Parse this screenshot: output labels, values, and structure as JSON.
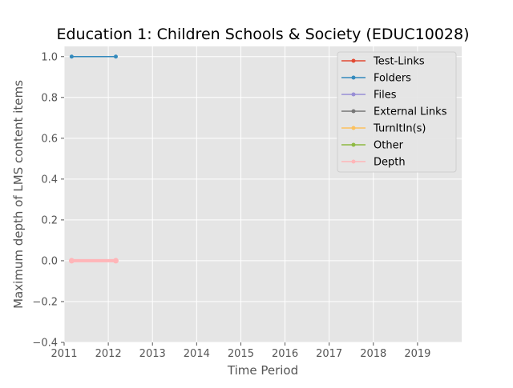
{
  "chart_data": {
    "type": "line",
    "title": "Education 1: Children Schools & Society (EDUC10028)",
    "xlabel": "Time Period",
    "ylabel": "Maximum depth of LMS content items",
    "xlim": [
      2011,
      2020
    ],
    "ylim": [
      -0.4,
      1.05
    ],
    "xticks": [
      "2011",
      "2012",
      "2013",
      "2014",
      "2015",
      "2016",
      "2017",
      "2018",
      "2019"
    ],
    "yticks": [
      "−0.4",
      "−0.2",
      "0.0",
      "0.2",
      "0.4",
      "0.6",
      "0.8",
      "1.0"
    ],
    "grid": true,
    "legend_position": "top-right",
    "x": [
      2011.17,
      2012.17
    ],
    "series": [
      {
        "name": "Test-Links",
        "color": "#E24A33",
        "values": [
          0,
          0
        ]
      },
      {
        "name": "Folders",
        "color": "#348ABD",
        "values": [
          1,
          1
        ]
      },
      {
        "name": "Files",
        "color": "#988ED5",
        "values": [
          0,
          0
        ]
      },
      {
        "name": "External Links",
        "color": "#777777",
        "values": [
          0,
          0
        ]
      },
      {
        "name": "TurnItIn(s)",
        "color": "#FBC15E",
        "values": [
          0,
          0
        ]
      },
      {
        "name": "Other",
        "color": "#8EBA42",
        "values": [
          0,
          0
        ]
      },
      {
        "name": "Depth",
        "color": "#FFB5B8",
        "values": [
          0,
          0
        ]
      }
    ]
  }
}
